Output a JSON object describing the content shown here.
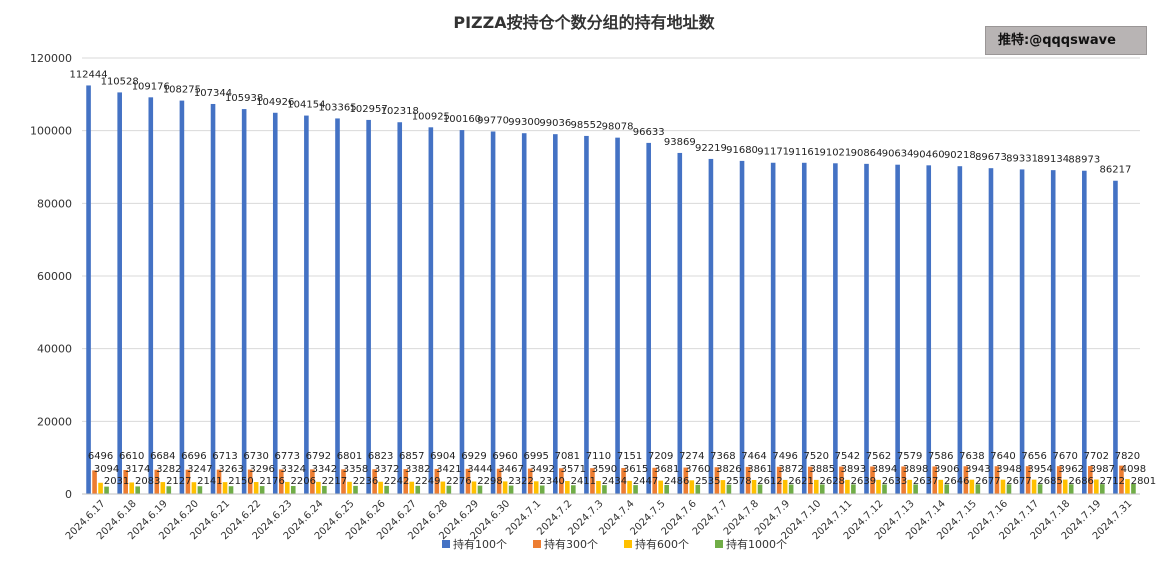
{
  "watermark": "推特:@qqqswave",
  "colors": {
    "s100": "#4472C4",
    "s300": "#ED7D31",
    "s600": "#FFC000",
    "s1000": "#70AD47",
    "grid": "#d9d9d9"
  },
  "chart_data": {
    "type": "bar",
    "title": "PIZZA按持仓个数分组的持有地址数",
    "xlabel": "",
    "ylabel": "",
    "ylim": [
      0,
      120000
    ],
    "yticks": [
      0,
      20000,
      40000,
      60000,
      80000,
      100000,
      120000
    ],
    "grid": true,
    "legend": "bottom",
    "categories": [
      "2024.6.17",
      "2024.6.18",
      "2024.6.19",
      "2024.6.20",
      "2024.6.21",
      "2024.6.22",
      "2024.6.23",
      "2024.6.24",
      "2024.6.25",
      "2024.6.26",
      "2024.6.27",
      "2024.6.28",
      "2024.6.29",
      "2024.6.30",
      "2024.7.1",
      "2024.7.2",
      "2024.7.3",
      "2024.7.4",
      "2024.7.5",
      "2024.7.6",
      "2024.7.7",
      "2024.7.8",
      "2024.7.9",
      "2024.7.10",
      "2024.7.11",
      "2024.7.12",
      "2024.7.13",
      "2024.7.14",
      "2024.7.15",
      "2024.7.16",
      "2024.7.17",
      "2024.7.18",
      "2024.7.19",
      "2024.7.31"
    ],
    "series": [
      {
        "name": "持有100个",
        "color": "#4472C4",
        "values": [
          112444,
          110528,
          109176,
          108275,
          107344,
          105938,
          104926,
          104154,
          103365,
          102957,
          102318,
          100925,
          100160,
          99770,
          99300,
          99036,
          98552,
          98078,
          96633,
          93869,
          92219,
          91680,
          91171,
          91161,
          91021,
          90864,
          90634,
          90460,
          90218,
          89673,
          89331,
          89134,
          88973,
          86217
        ]
      },
      {
        "name": "持有300个",
        "color": "#ED7D31",
        "values": [
          6496,
          6610,
          6684,
          6696,
          6713,
          6730,
          6773,
          6792,
          6801,
          6823,
          6857,
          6904,
          6929,
          6960,
          6995,
          7081,
          7110,
          7151,
          7209,
          7274,
          7368,
          7464,
          7496,
          7520,
          7542,
          7562,
          7579,
          7586,
          7638,
          7640,
          7656,
          7670,
          7702,
          7820
        ]
      },
      {
        "name": "持有600个",
        "color": "#FFC000",
        "values": [
          3094,
          3174,
          3282,
          3247,
          3263,
          3296,
          3324,
          3342,
          3358,
          3372,
          3382,
          3421,
          3444,
          3467,
          3492,
          3571,
          3590,
          3615,
          3681,
          3760,
          3826,
          3861,
          3872,
          3885,
          3893,
          3894,
          3898,
          3906,
          3943,
          3948,
          3954,
          3962,
          3987,
          4098
        ]
      },
      {
        "name": "持有1000个",
        "color": "#70AD47",
        "values": [
          2031,
          2083,
          2127,
          2141,
          2150,
          2176,
          2206,
          2217,
          2236,
          2242,
          2249,
          2276,
          2298,
          2322,
          2340,
          2411,
          2434,
          2447,
          2486,
          2535,
          2578,
          2612,
          2621,
          2628,
          2639,
          2633,
          2637,
          2646,
          2677,
          2677,
          2685,
          2686,
          2712,
          2801
        ]
      }
    ]
  }
}
